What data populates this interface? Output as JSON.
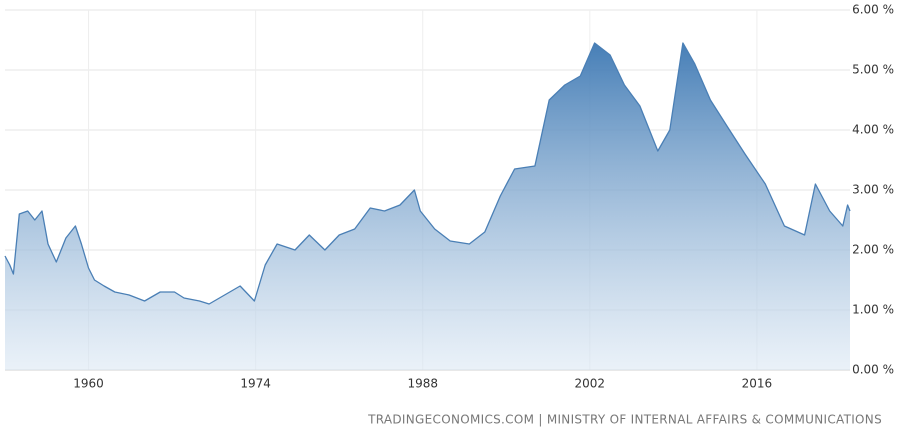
{
  "chart_data": {
    "type": "area",
    "source": "TRADINGECONOMICS.COM | MINISTRY OF INTERNAL AFFAIRS & COMMUNICATIONS",
    "color": "#4a7fb5",
    "grid": true,
    "xlim": [
      1953,
      2023.8
    ],
    "xticks": [
      1960,
      1974,
      1988,
      2002,
      2016
    ],
    "ylim": [
      0,
      6
    ],
    "yticks": [
      {
        "value": 0,
        "label": "0.00 %"
      },
      {
        "value": 1,
        "label": "1.00 %"
      },
      {
        "value": 2,
        "label": "2.00 %"
      },
      {
        "value": 3,
        "label": "3.00 %"
      },
      {
        "value": 4,
        "label": "4.00 %"
      },
      {
        "value": 5,
        "label": "5.00 %"
      },
      {
        "value": 6,
        "label": "6.00 %"
      }
    ],
    "x": [
      1953.0,
      1953.4,
      1953.7,
      1954.2,
      1954.9,
      1955.5,
      1956.1,
      1956.6,
      1957.3,
      1958.1,
      1958.9,
      1959.4,
      1960.0,
      1960.5,
      1961.3,
      1962.2,
      1963.4,
      1964.7,
      1966.0,
      1967.2,
      1968.0,
      1969.3,
      1970.1,
      1971.4,
      1972.7,
      1973.9,
      1974.8,
      1975.8,
      1977.3,
      1978.5,
      1979.8,
      1981.0,
      1982.3,
      1983.6,
      1984.8,
      1986.1,
      1987.3,
      1987.8,
      1989.0,
      1990.3,
      1991.9,
      1993.2,
      1994.5,
      1995.7,
      1997.4,
      1998.6,
      1999.9,
      2001.2,
      2002.4,
      2003.7,
      2004.9,
      2006.2,
      2007.7,
      2008.7,
      2009.8,
      2010.8,
      2012.1,
      2013.7,
      2015.0,
      2016.7,
      2018.3,
      2020.0,
      2020.9,
      2022.1,
      2023.2,
      2023.6,
      2023.8
    ],
    "values": [
      1.9,
      1.75,
      1.6,
      2.6,
      2.65,
      2.5,
      2.65,
      2.1,
      1.8,
      2.2,
      2.4,
      2.1,
      1.7,
      1.5,
      1.4,
      1.3,
      1.25,
      1.15,
      1.3,
      1.3,
      1.2,
      1.15,
      1.1,
      1.25,
      1.4,
      1.15,
      1.75,
      2.1,
      2.0,
      2.25,
      2.0,
      2.25,
      2.35,
      2.7,
      2.65,
      2.75,
      3.0,
      2.65,
      2.35,
      2.15,
      2.1,
      2.3,
      2.9,
      3.35,
      3.4,
      4.5,
      4.75,
      4.9,
      5.45,
      5.25,
      4.75,
      4.4,
      3.65,
      4.0,
      5.45,
      5.1,
      4.5,
      4.0,
      3.6,
      3.1,
      2.4,
      2.25,
      3.1,
      2.65,
      2.4,
      2.75,
      2.65
    ]
  }
}
